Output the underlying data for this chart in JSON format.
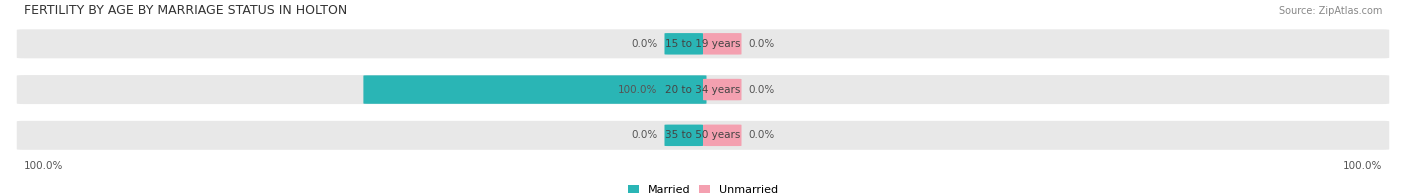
{
  "title": "FERTILITY BY AGE BY MARRIAGE STATUS IN HOLTON",
  "source": "Source: ZipAtlas.com",
  "age_groups": [
    "15 to 19 years",
    "20 to 34 years",
    "35 to 50 years"
  ],
  "married_values": [
    0.0,
    100.0,
    0.0
  ],
  "unmarried_values": [
    0.0,
    0.0,
    0.0
  ],
  "married_color": "#2ab5b5",
  "unmarried_color": "#f4a0b0",
  "bar_bg_color": "#e8e8e8",
  "bar_height": 0.55,
  "title_fontsize": 9,
  "label_fontsize": 7.5,
  "source_fontsize": 7,
  "legend_fontsize": 8,
  "left_label_100": "100.0%",
  "right_label_100": "100.0%",
  "background_color": "#ffffff",
  "center_label_color": "#444444",
  "value_color": "#555555"
}
